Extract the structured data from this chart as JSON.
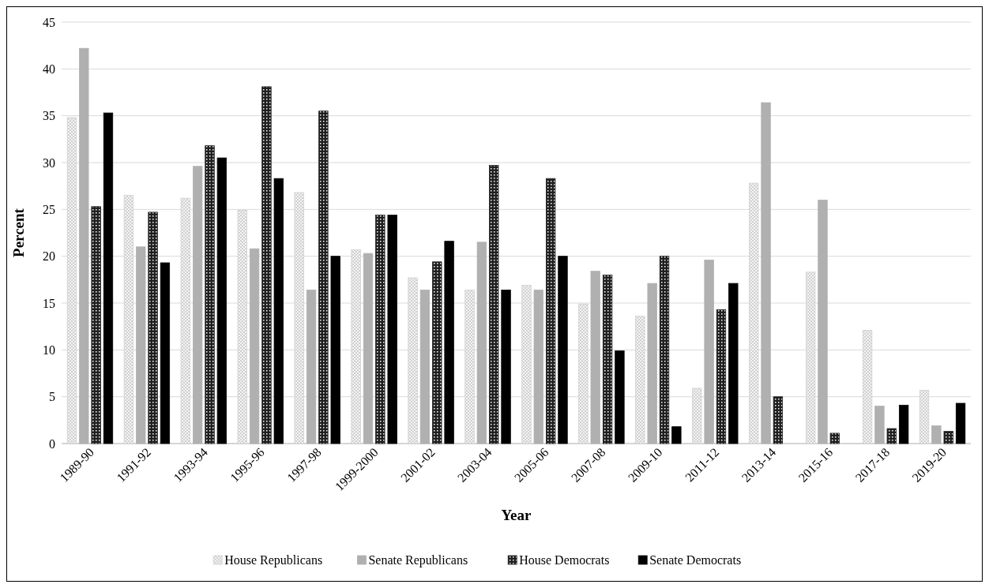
{
  "chart_data": {
    "type": "bar",
    "xlabel": "Year",
    "ylabel": "Percent",
    "categories": [
      "1989-90",
      "1991-92",
      "1993-94",
      "1995-96",
      "1997-98",
      "1999-2000",
      "2001-02",
      "2003-04",
      "2005-06",
      "2007-08",
      "2009-10",
      "2011-12",
      "2013-14",
      "2015-16",
      "2017-18",
      "2019-20"
    ],
    "series": [
      {
        "name": "House Republicans",
        "color": "#d0d0d0",
        "values": [
          34.8,
          26.5,
          26.2,
          24.9,
          26.8,
          20.7,
          17.7,
          16.4,
          16.9,
          14.9,
          13.6,
          5.9,
          27.8,
          18.3,
          12.1,
          5.7
        ]
      },
      {
        "name": "Senate Republicans",
        "color": "#b0b0b0",
        "values": [
          42.2,
          21,
          29.6,
          20.8,
          16.4,
          20.3,
          16.4,
          21.5,
          16.4,
          18.4,
          17.1,
          19.6,
          36.4,
          26,
          4,
          1.9
        ]
      },
      {
        "name": "House Democrats",
        "color": "#202020",
        "values": [
          25.3,
          24.7,
          31.8,
          38.1,
          35.5,
          24.4,
          19.4,
          29.7,
          28.3,
          18,
          20,
          14.3,
          5,
          1.1,
          1.6,
          1.3
        ]
      },
      {
        "name": "Senate Democrats",
        "color": "#000000",
        "values": [
          35.3,
          19.3,
          30.5,
          28.3,
          20,
          24.4,
          21.6,
          16.4,
          20,
          9.9,
          1.8,
          17.1,
          0,
          0,
          4.1,
          4.3
        ]
      }
    ],
    "ylim": [
      0,
      45
    ],
    "yticks": [
      0,
      5,
      10,
      15,
      20,
      25,
      30,
      35,
      40,
      45
    ],
    "grid": "y",
    "legend": "bottom"
  }
}
